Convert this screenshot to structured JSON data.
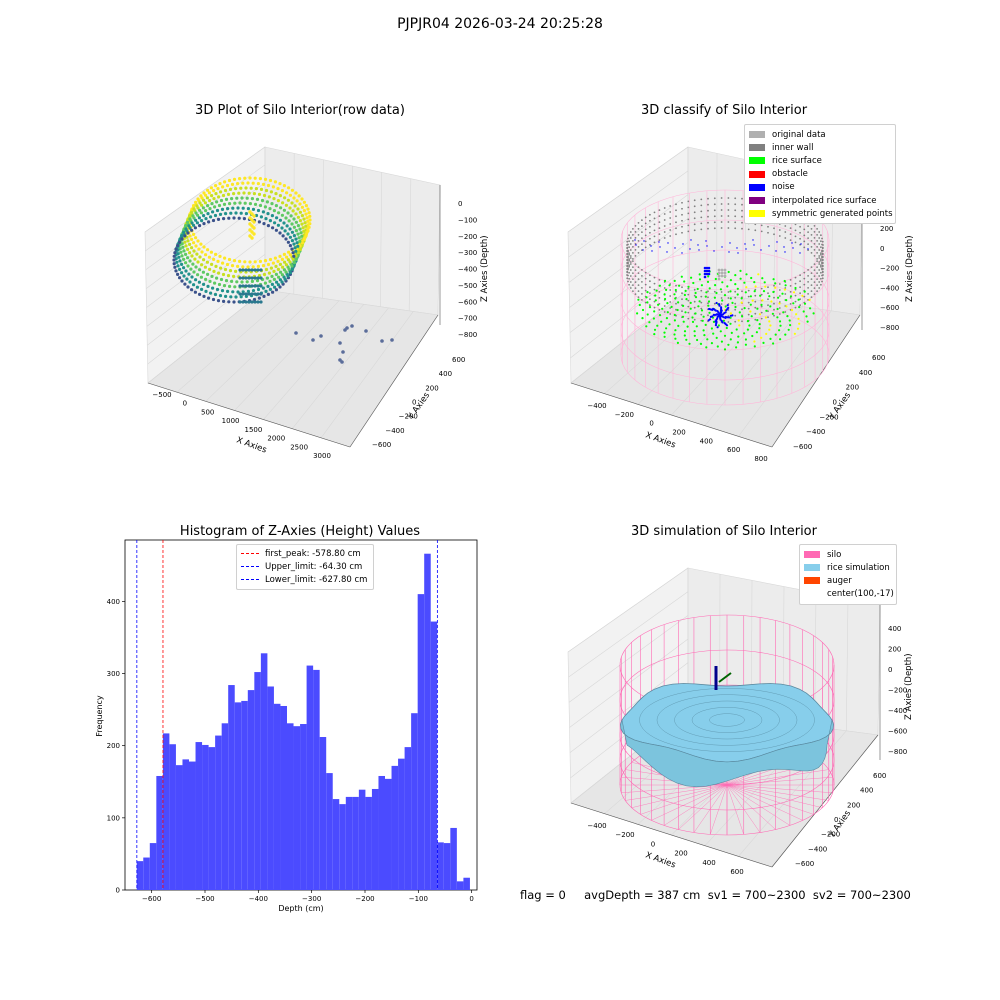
{
  "suptitle": "PJPJR04 2026-03-24 20:25:28",
  "footer": "flag = 0     avgDepth = 387 cm  sv1 = 700~2300  sv2 = 700~2300",
  "colors": {
    "pane": "#f2f2f2",
    "grid": "#d8d8d8",
    "hist_bar": "#4b4bff",
    "first_peak": "#ff0000",
    "limit": "#0000ff"
  },
  "chart_data": [
    {
      "type": "scatter",
      "subtype": "3d",
      "title": "3D Plot of Silo Interior(row data)",
      "xlabel": "X Axies",
      "ylabel": "Y Axies",
      "zlabel": "Z Axies (Depth)",
      "x_ticks": [
        "−500",
        "0",
        "500",
        "1000",
        "1500",
        "2000",
        "2500",
        "3000"
      ],
      "y_ticks": [
        "600",
        "400",
        "200",
        "0",
        "−200",
        "−400",
        "−600"
      ],
      "z_ticks": [
        "0",
        "−100",
        "−200",
        "−300",
        "−400",
        "−500",
        "−600",
        "−700",
        "−800"
      ],
      "xlim": [
        -600,
        3100
      ],
      "ylim": [
        -700,
        700
      ],
      "zlim": [
        -850,
        30
      ],
      "colormap": "viridis"
    },
    {
      "type": "scatter",
      "subtype": "3d",
      "title": "3D classify of Silo Interior",
      "xlabel": "X Axies",
      "ylabel": "Y Axies",
      "zlabel": "Z Axies (Depth)",
      "x_ticks": [
        "−400",
        "−200",
        "0",
        "200",
        "400",
        "600",
        "800"
      ],
      "y_ticks": [
        "600",
        "400",
        "200",
        "0",
        "−200",
        "−400",
        "−600"
      ],
      "z_ticks": [
        "200",
        "0",
        "−200",
        "−400",
        "−600",
        "−800"
      ],
      "legend": [
        {
          "label": "original data",
          "color": "#b0b0b0"
        },
        {
          "label": "inner wall",
          "color": "#808080"
        },
        {
          "label": "rice surface",
          "color": "#00ff00"
        },
        {
          "label": "obstacle",
          "color": "#ff0000"
        },
        {
          "label": "noise",
          "color": "#0000ff"
        },
        {
          "label": "interpolated rice surface",
          "color": "#800080"
        },
        {
          "label": "symmetric generated points",
          "color": "#ffff00"
        }
      ],
      "legend_loc": "upper right"
    },
    {
      "type": "bar",
      "subtype": "histogram",
      "title": "Histogram of Z-Axies (Height) Values",
      "xlabel": "Depth (cm)",
      "ylabel": "Frequency",
      "xlim": [
        -650,
        10
      ],
      "ylim": [
        0,
        485
      ],
      "x_ticks": [
        -600,
        -500,
        -400,
        -300,
        -200,
        -100,
        0
      ],
      "y_ticks": [
        0,
        100,
        200,
        300,
        400
      ],
      "bin_start": -628,
      "bin_width": 12.25,
      "values": [
        40,
        45,
        65,
        158,
        217,
        202,
        173,
        181,
        178,
        205,
        201,
        198,
        214,
        231,
        284,
        260,
        262,
        277,
        302,
        328,
        282,
        258,
        255,
        231,
        227,
        230,
        311,
        305,
        212,
        162,
        126,
        119,
        129,
        129,
        139,
        129,
        140,
        158,
        154,
        172,
        182,
        198,
        245,
        410,
        466,
        372,
        66,
        65,
        86,
        12,
        17
      ],
      "vlines": [
        {
          "label": "first_peak: -578.80 cm",
          "x": -578.8,
          "color": "#ff0000"
        },
        {
          "label": "Upper_limit: -64.30 cm",
          "x": -64.3,
          "color": "#0000ff"
        },
        {
          "label": "Lower_limit: -627.80 cm",
          "x": -627.8,
          "color": "#0000ff"
        }
      ],
      "legend_loc": "upper center"
    },
    {
      "type": "surface",
      "subtype": "3d",
      "title": "3D simulation of Silo Interior",
      "xlabel": "X Axies",
      "ylabel": "Y Axies",
      "zlabel": "Z Axies (Depth)",
      "x_ticks": [
        "−400",
        "−200",
        "0",
        "200",
        "400",
        "600"
      ],
      "y_ticks": [
        "600",
        "400",
        "200",
        "0",
        "−200",
        "−400",
        "−600"
      ],
      "z_ticks": [
        "400",
        "200",
        "0",
        "−200",
        "−400",
        "−600",
        "−800"
      ],
      "legend": [
        {
          "label": "silo",
          "color": "#ff69b4"
        },
        {
          "label": "rice simulation",
          "color": "#87ceeb"
        },
        {
          "label": "auger",
          "color": "#ff4500"
        },
        {
          "label": "center(100,-17)",
          "color": ""
        }
      ],
      "legend_loc": "upper right"
    }
  ]
}
